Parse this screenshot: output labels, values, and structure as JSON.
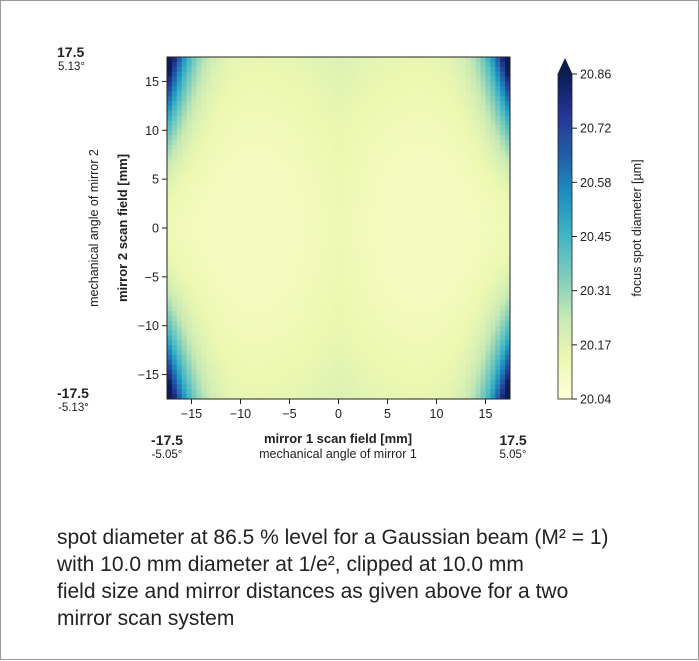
{
  "chart_data": {
    "type": "heatmap",
    "x": {
      "range": [
        -17.5,
        17.5
      ],
      "ticks": [
        -15,
        -10,
        -5,
        0,
        5,
        10,
        15
      ],
      "tick_labels": [
        "−15",
        "−10",
        "−5",
        "0",
        "5",
        "10",
        "15"
      ]
    },
    "y": {
      "range": [
        -17.5,
        17.5
      ],
      "ticks": [
        15,
        10,
        5,
        0,
        -5,
        -10,
        -15
      ],
      "tick_labels": [
        "15",
        "10",
        "5",
        "0",
        "−5",
        "−10",
        "−15"
      ]
    },
    "xlabel": "mirror 1 scan field [mm]",
    "xlabel2": "mechanical angle of mirror 1",
    "ylabel": "mirror 2 scan field [mm]",
    "ylabel2": "mechanical angle of mirror 2",
    "corners": {
      "y_top": {
        "value": "17.5",
        "angle": "5.13°"
      },
      "y_bottom": {
        "value": "-17.5",
        "angle": "-5.13°"
      },
      "x_left": {
        "value": "-17.5",
        "angle": "-5.05°"
      },
      "x_right": {
        "value": "17.5",
        "angle": "5.05°"
      }
    },
    "colorbar": {
      "label": "focus spot diameter [µm]",
      "range": [
        20.04,
        20.86
      ],
      "ticks": [
        "20.86",
        "20.72",
        "20.58",
        "20.45",
        "20.31",
        "20.17",
        "20.04"
      ],
      "colormap": [
        "#ffffd9",
        "#edf8b1",
        "#c7e9b4",
        "#7fcdbb",
        "#41b6c4",
        "#1d91c0",
        "#225ea8",
        "#253494",
        "#081d58"
      ],
      "extend": "max"
    },
    "field_description": "minimum near (±9, 0) ≈ 20.1 µm, rising towards corners (±17.5, ±17.5) ≈ 20.86 µm"
  },
  "caption": {
    "line1": "spot diameter at 86.5 % level for a Gaussian beam (M² = 1)",
    "line2": "with 10.0 mm diameter at 1/e², clipped at 10.0 mm",
    "line3": "field size and mirror distances as given above for a two",
    "line4": "mirror scan system"
  }
}
